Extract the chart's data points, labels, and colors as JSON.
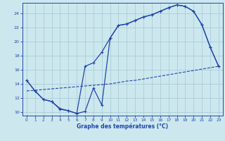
{
  "title": "Graphe des températures (°C)",
  "background_color": "#cce8ee",
  "grid_color": "#aaccd8",
  "line_color": "#2244aa",
  "xlim": [
    -0.5,
    23.5
  ],
  "ylim": [
    9.5,
    25.5
  ],
  "xticks": [
    0,
    1,
    2,
    3,
    4,
    5,
    6,
    7,
    8,
    9,
    10,
    11,
    12,
    13,
    14,
    15,
    16,
    17,
    18,
    19,
    20,
    21,
    22,
    23
  ],
  "yticks": [
    10,
    12,
    14,
    16,
    18,
    20,
    22,
    24
  ],
  "curve1": {
    "x": [
      0,
      1,
      2,
      3,
      4,
      5,
      6,
      7,
      8,
      9,
      10,
      11,
      12,
      13,
      14,
      15,
      16,
      17,
      18,
      19,
      20,
      21,
      22,
      23
    ],
    "y": [
      14.5,
      13.0,
      11.8,
      11.5,
      10.4,
      10.2,
      9.8,
      10.1,
      13.4,
      11.0,
      20.5,
      22.3,
      22.5,
      23.0,
      23.5,
      23.8,
      24.3,
      24.8,
      25.2,
      25.0,
      24.3,
      22.4,
      19.2,
      16.5
    ]
  },
  "curve2": {
    "x": [
      0,
      1,
      2,
      3,
      4,
      5,
      6,
      7,
      8,
      9,
      10,
      11,
      12,
      13,
      14,
      15,
      16,
      17,
      18,
      19,
      20,
      21,
      22,
      23
    ],
    "y": [
      14.5,
      13.0,
      11.8,
      11.5,
      10.5,
      10.2,
      9.8,
      16.5,
      17.0,
      18.5,
      20.5,
      22.3,
      22.5,
      23.0,
      23.5,
      23.8,
      24.3,
      24.8,
      25.2,
      25.0,
      24.3,
      22.4,
      19.2,
      16.5
    ]
  },
  "curve3": {
    "x": [
      0,
      1,
      2,
      3,
      4,
      5,
      6,
      7,
      8,
      9,
      10,
      11,
      12,
      13,
      14,
      15,
      16,
      17,
      18,
      19,
      20,
      21,
      22,
      23
    ],
    "y": [
      13.0,
      13.1,
      13.2,
      13.3,
      13.4,
      13.5,
      13.6,
      13.7,
      13.8,
      13.9,
      14.0,
      14.2,
      14.4,
      14.5,
      14.7,
      14.9,
      15.1,
      15.3,
      15.5,
      15.7,
      15.9,
      16.1,
      16.3,
      16.5
    ]
  }
}
